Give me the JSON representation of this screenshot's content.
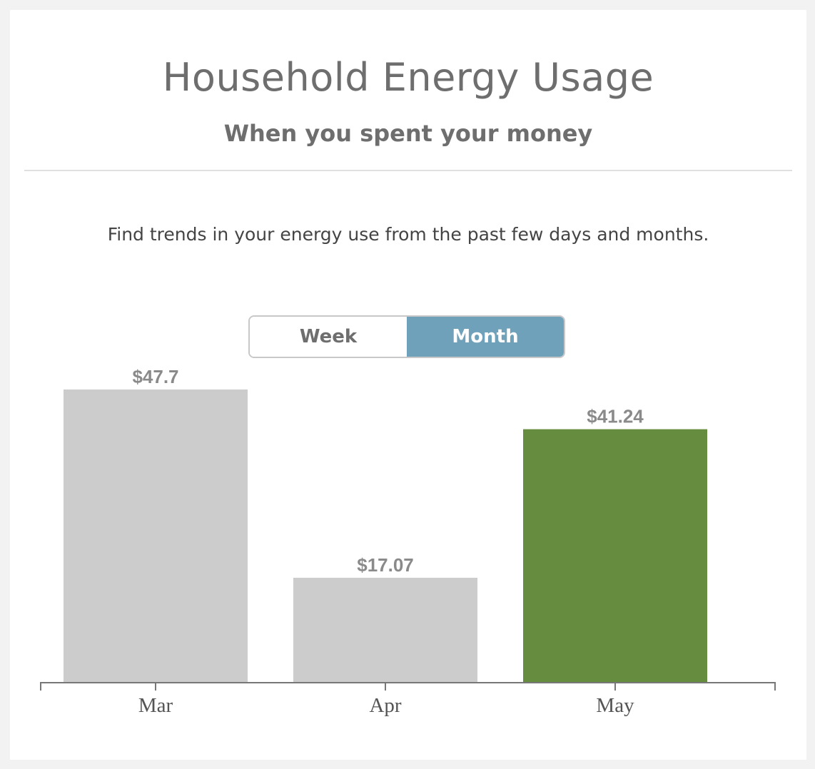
{
  "header": {
    "title": "Household Energy Usage",
    "subtitle": "When you spent your money"
  },
  "description": "Find trends in your energy use from the past few days and months.",
  "toggle": {
    "options": [
      {
        "label": "Week",
        "active": false
      },
      {
        "label": "Month",
        "active": true
      }
    ]
  },
  "colors": {
    "bar_default": "#cccccc",
    "bar_current": "#668d3f",
    "toggle_active": "#6fa2ba"
  },
  "chart_data": {
    "type": "bar",
    "categories": [
      "Mar",
      "Apr",
      "May"
    ],
    "values": [
      47.7,
      17.07,
      41.24
    ],
    "value_labels": [
      "$47.7",
      "$17.07",
      "$41.24"
    ],
    "highlight_index": 2,
    "ylim": [
      0,
      47.7
    ],
    "grid": false
  }
}
